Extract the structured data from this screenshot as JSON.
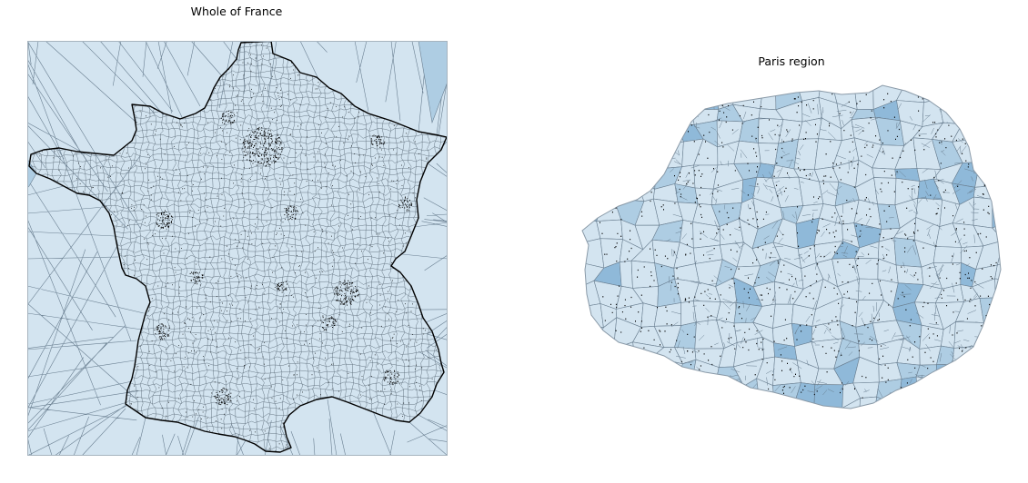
{
  "figure": {
    "left_panel": {
      "title": "Whole of France"
    },
    "right_panel": {
      "title": "Paris region"
    }
  },
  "colors": {
    "cell_fill_light": "#d3e4f0",
    "cell_fill_mid": "#aecde3",
    "cell_fill_dark": "#8fb9d9",
    "cell_edge": "#6a7f91",
    "border": "#000000",
    "point": "#000000",
    "frame": "#a7b4be"
  },
  "map_layers": [
    {
      "name": "voronoi-cells",
      "description_hidden": true
    },
    {
      "name": "france-boundary"
    },
    {
      "name": "commune-centroids"
    }
  ]
}
